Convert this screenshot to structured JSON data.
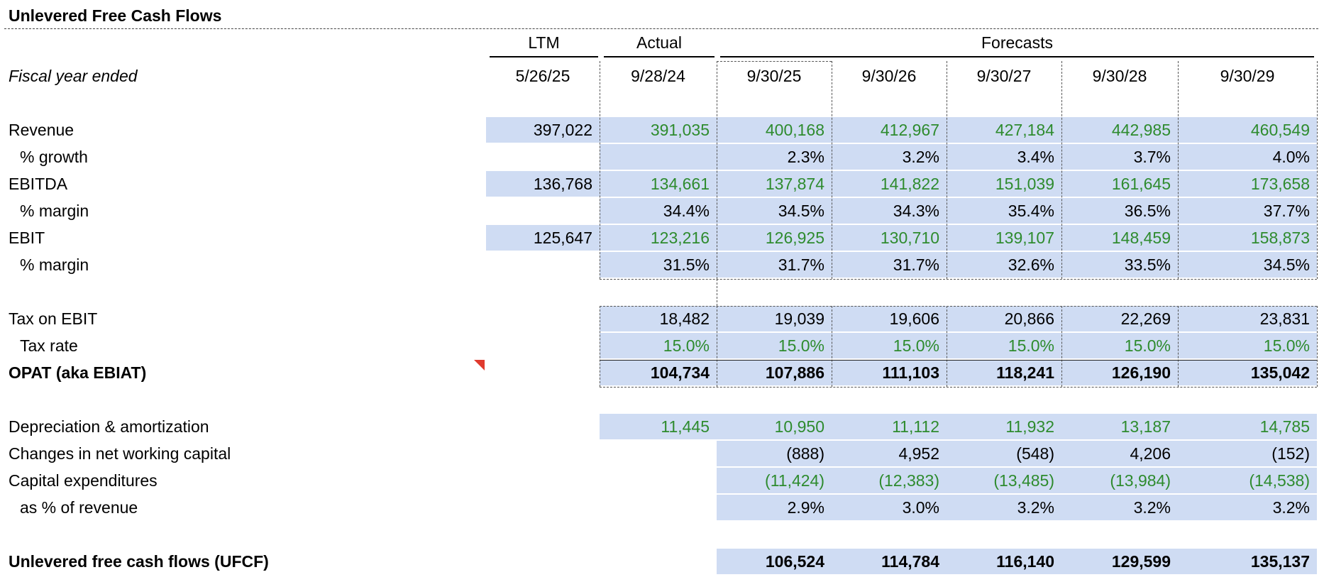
{
  "title": "Unlevered Free Cash Flows",
  "group_headers": {
    "ltm": "LTM",
    "actual": "Actual",
    "forecasts": "Forecasts"
  },
  "fiscal_year_label": "Fiscal year ended",
  "dates": [
    "5/26/25",
    "9/28/24",
    "9/30/25",
    "9/30/26",
    "9/30/27",
    "9/30/28",
    "9/30/29"
  ],
  "rows": {
    "revenue": {
      "label": "Revenue",
      "values": [
        "397,022",
        "391,035",
        "400,168",
        "412,967",
        "427,184",
        "442,985",
        "460,549"
      ]
    },
    "growth": {
      "label": "% growth",
      "values": [
        "",
        "",
        "2.3%",
        "3.2%",
        "3.4%",
        "3.7%",
        "4.0%"
      ]
    },
    "ebitda": {
      "label": "EBITDA",
      "values": [
        "136,768",
        "134,661",
        "137,874",
        "141,822",
        "151,039",
        "161,645",
        "173,658"
      ]
    },
    "ebitda_margin": {
      "label": "% margin",
      "values": [
        "",
        "34.4%",
        "34.5%",
        "34.3%",
        "35.4%",
        "36.5%",
        "37.7%"
      ]
    },
    "ebit": {
      "label": "EBIT",
      "values": [
        "125,647",
        "123,216",
        "126,925",
        "130,710",
        "139,107",
        "148,459",
        "158,873"
      ]
    },
    "ebit_margin": {
      "label": "% margin",
      "values": [
        "",
        "31.5%",
        "31.7%",
        "31.7%",
        "32.6%",
        "33.5%",
        "34.5%"
      ]
    },
    "tax_on_ebit": {
      "label": "Tax on EBIT",
      "values": [
        "",
        "18,482",
        "19,039",
        "19,606",
        "20,866",
        "22,269",
        "23,831"
      ]
    },
    "tax_rate": {
      "label": "Tax rate",
      "values": [
        "",
        "15.0%",
        "15.0%",
        "15.0%",
        "15.0%",
        "15.0%",
        "15.0%"
      ]
    },
    "opat": {
      "label": "OPAT (aka EBIAT)",
      "values": [
        "",
        "104,734",
        "107,886",
        "111,103",
        "118,241",
        "126,190",
        "135,042"
      ]
    },
    "da": {
      "label": "Depreciation & amortization",
      "values": [
        "",
        "11,445",
        "10,950",
        "11,112",
        "11,932",
        "13,187",
        "14,785"
      ]
    },
    "nwc": {
      "label": "Changes in net working capital",
      "values": [
        "",
        "",
        "(888)",
        "4,952",
        "(548)",
        "4,206",
        "(152)"
      ]
    },
    "capex": {
      "label": "Capital expenditures",
      "values": [
        "",
        "",
        "(11,424)",
        "(12,383)",
        "(13,485)",
        "(13,984)",
        "(14,538)"
      ]
    },
    "capex_pct": {
      "label": "as % of revenue",
      "values": [
        "",
        "",
        "2.9%",
        "3.0%",
        "3.2%",
        "3.2%",
        "3.2%"
      ]
    },
    "ufcf": {
      "label": "Unlevered free cash flows (UFCF)",
      "values": [
        "",
        "",
        "106,524",
        "114,784",
        "116,140",
        "129,599",
        "135,137"
      ]
    }
  },
  "colors": {
    "fill": "#cfdcf3",
    "input_green": "#2e8b2e",
    "comment_marker": "#e03a2e"
  }
}
